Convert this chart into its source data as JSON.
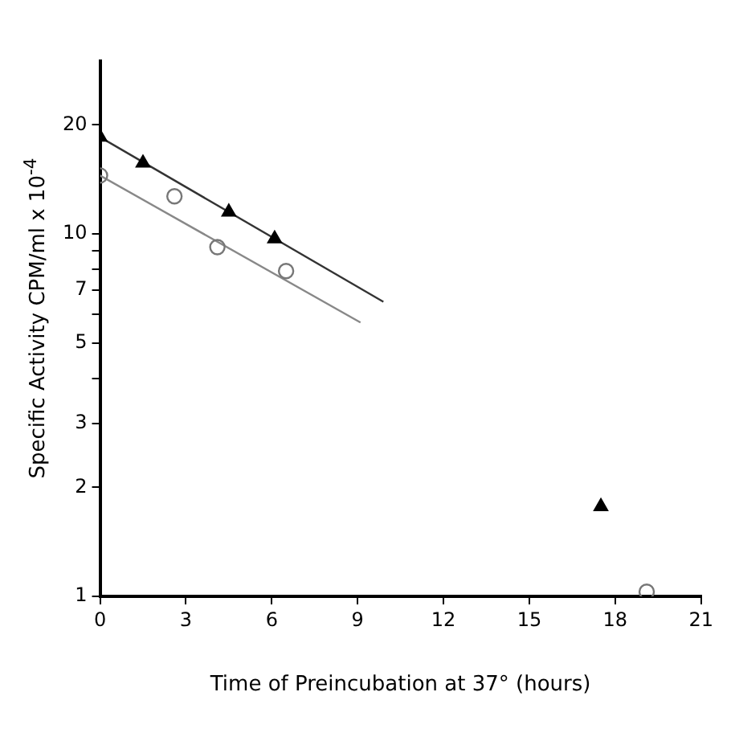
{
  "chart_data": {
    "type": "scatter",
    "xlabel": "Time of Preincubation at 37° (hours)",
    "ylabel": "Specific Activity CPM/ml x 10$^{-4}$",
    "log": "y",
    "grid": false,
    "legend": false,
    "xlim": [
      0,
      21
    ],
    "xticks": [
      0,
      3,
      6,
      9,
      12,
      15,
      18,
      21
    ],
    "ylim": [
      1,
      30
    ],
    "yticks": [
      1,
      2,
      3,
      {
        "value": 4,
        "label": null
      },
      5,
      {
        "value": 6,
        "label": null
      },
      7,
      {
        "value": 8,
        "label": null
      },
      {
        "value": 9,
        "label": null
      },
      10,
      20
    ],
    "series": [
      {
        "type": "scatter",
        "marker": "triangle",
        "color": "#000000",
        "x": [
          0,
          1.5,
          4.5,
          6.1,
          17.5
        ],
        "values": [
          18.5,
          15.7,
          11.5,
          9.7,
          1.77
        ]
      },
      {
        "type": "scatter",
        "marker": "circle",
        "color": "#777777",
        "x": [
          0,
          2.6,
          4.1,
          6.5,
          19.1
        ],
        "values": [
          14.5,
          12.7,
          9.2,
          7.9,
          1.03
        ]
      },
      {
        "type": "line",
        "marker": "none",
        "color": "#333333",
        "x": [
          0,
          9.9
        ],
        "values": [
          18.5,
          6.5
        ]
      },
      {
        "type": "line",
        "marker": "none",
        "color": "#888888",
        "x": [
          0,
          9.1
        ],
        "values": [
          14.5,
          5.7
        ]
      }
    ]
  }
}
